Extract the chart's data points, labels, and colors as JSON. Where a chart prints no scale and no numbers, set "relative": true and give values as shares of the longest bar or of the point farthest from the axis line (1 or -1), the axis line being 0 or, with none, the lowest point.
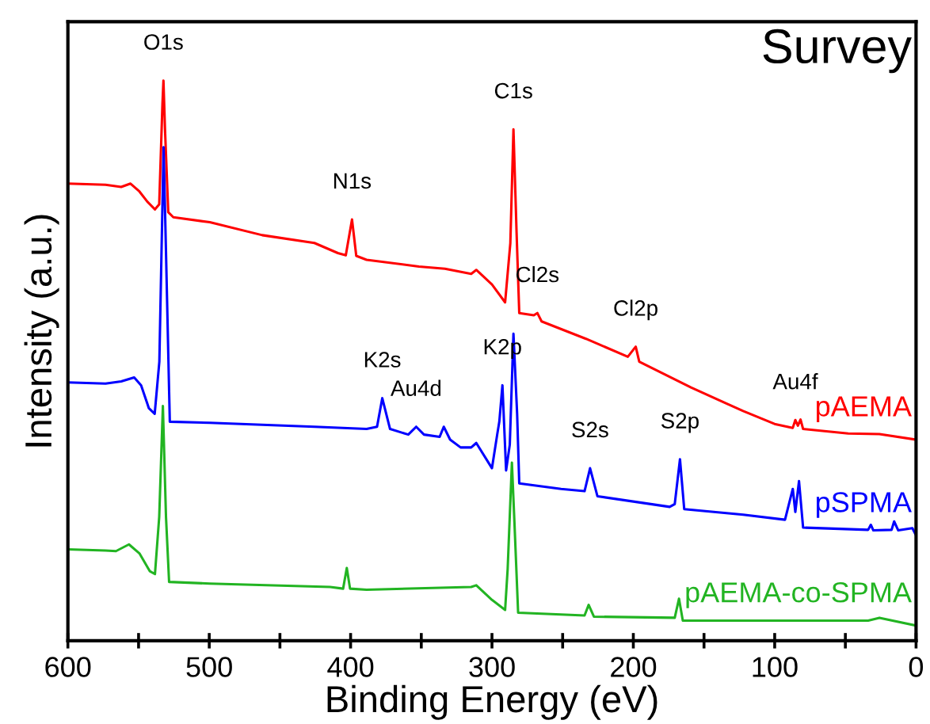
{
  "chart_data": {
    "type": "line",
    "title": "Survey",
    "xlabel": "Binding Energy (eV)",
    "ylabel": "Intensity (a.u.)",
    "relative": true,
    "xlim": [
      600,
      0
    ],
    "xticks": [
      600,
      {
        "value": 550,
        "label": null
      },
      500,
      {
        "value": 450,
        "label": null
      },
      400,
      {
        "value": 350,
        "label": null
      },
      300,
      {
        "value": 250,
        "label": null
      },
      200,
      {
        "value": 150,
        "label": null
      },
      100,
      {
        "value": 50,
        "label": null
      },
      0
    ],
    "tick_labels": "x",
    "grid": false,
    "legend": false,
    "marker": "none",
    "line_style": "solid",
    "series": [
      {
        "name": "pAEMA",
        "color": "#ff0000",
        "x": [
          600,
          573.4,
          562.3,
          555.7,
          549.4,
          543.9,
          538.4,
          535.4,
          533.1,
          532.4,
          531.3,
          529.0,
          525.4,
          499.6,
          462.5,
          425.6,
          409.0,
          403.4,
          399.0,
          396.0,
          388.7,
          351.7,
          333.3,
          314.7,
          311.1,
          300.0,
          290.7,
          287.0,
          284.8,
          282.6,
          280.7,
          270.4,
          267.9,
          264.9,
          233.5,
          203.9,
          198.3,
          195.8,
          159.2,
          122.3,
          100.1,
          87.2,
          85.4,
          83.6,
          81.7,
          79.9,
          48.0,
          25.9,
          0
        ],
        "values": [
          0.816,
          0.814,
          0.81,
          0.816,
          0.802,
          0.784,
          0.77,
          0.779,
          0.959,
          1.0,
          0.913,
          0.765,
          0.756,
          0.747,
          0.724,
          0.71,
          0.692,
          0.688,
          0.752,
          0.687,
          0.68,
          0.668,
          0.664,
          0.655,
          0.662,
          0.636,
          0.604,
          0.71,
          0.913,
          0.729,
          0.585,
          0.581,
          0.585,
          0.57,
          0.539,
          0.507,
          0.525,
          0.498,
          0.452,
          0.41,
          0.387,
          0.38,
          0.394,
          0.384,
          0.395,
          0.378,
          0.37,
          0.369,
          0.359
        ]
      },
      {
        "name": "pSPMA",
        "color": "#0000ff",
        "x": [
          600,
          573.4,
          562.3,
          553.1,
          548.2,
          542.7,
          538.6,
          535.3,
          532.3,
          530.5,
          527.9,
          499.6,
          425.6,
          388.7,
          381.3,
          377.6,
          372.1,
          359.2,
          353.6,
          348.1,
          337.0,
          334.1,
          329.6,
          322.2,
          314.7,
          311.1,
          300.0,
          296.3,
          294.8,
          292.6,
          290.0,
          287.4,
          284.8,
          282.2,
          280.7,
          251.1,
          234.5,
          230.6,
          225.4,
          174.3,
          170.7,
          167.0,
          164.0,
          122.3,
          92.7,
          87.2,
          85.4,
          82.8,
          79.9,
          33.9,
          32.0,
          30.2,
          17.3,
          15.5,
          12.6,
          2.6,
          0
        ],
        "values": [
          0.461,
          0.459,
          0.463,
          0.47,
          0.456,
          0.415,
          0.405,
          0.498,
          0.881,
          0.682,
          0.391,
          0.389,
          0.382,
          0.378,
          0.382,
          0.433,
          0.378,
          0.368,
          0.382,
          0.368,
          0.364,
          0.382,
          0.359,
          0.345,
          0.345,
          0.353,
          0.308,
          0.368,
          0.391,
          0.456,
          0.304,
          0.35,
          0.548,
          0.405,
          0.281,
          0.271,
          0.267,
          0.308,
          0.258,
          0.239,
          0.244,
          0.324,
          0.235,
          0.225,
          0.216,
          0.271,
          0.23,
          0.285,
          0.202,
          0.198,
          0.207,
          0.197,
          0.198,
          0.213,
          0.197,
          0.201,
          0.188
        ]
      },
      {
        "name": "pAEMA-co-SPMA",
        "color": "#22b422",
        "x": [
          600,
          573.4,
          566.0,
          556.8,
          549.4,
          542.0,
          538.4,
          535.4,
          532.8,
          530.6,
          528.4,
          499.6,
          414.5,
          405.3,
          402.7,
          400.4,
          388.7,
          314.7,
          311.1,
          300.0,
          290.7,
          288.9,
          285.9,
          284.1,
          281.5,
          234.5,
          231.6,
          227.9,
          170.7,
          167.7,
          165.0,
          104.6,
          33.9,
          25.9,
          0
        ],
        "values": [
          0.163,
          0.161,
          0.16,
          0.172,
          0.156,
          0.124,
          0.119,
          0.221,
          0.419,
          0.221,
          0.105,
          0.102,
          0.096,
          0.093,
          0.13,
          0.093,
          0.091,
          0.096,
          0.099,
          0.073,
          0.055,
          0.128,
          0.318,
          0.211,
          0.05,
          0.045,
          0.064,
          0.043,
          0.041,
          0.075,
          0.036,
          0.036,
          0.036,
          0.041,
          0.027
        ]
      }
    ],
    "annotations": [
      {
        "text": "O1s",
        "x": 532.4,
        "y": 1.0
      },
      {
        "text": "N1s",
        "x": 399.0,
        "y": 0.752
      },
      {
        "text": "C1s",
        "x": 284.8,
        "y": 0.913
      },
      {
        "text": "Cl2s",
        "x": 267.9,
        "y": 0.585
      },
      {
        "text": "Cl2p",
        "x": 198.3,
        "y": 0.525
      },
      {
        "text": "K2s",
        "x": 377.6,
        "y": 0.433
      },
      {
        "text": "Au4d",
        "x": 353.6,
        "y": 0.382
      },
      {
        "text": "K2p",
        "x": 292.6,
        "y": 0.456
      },
      {
        "text": "S2s",
        "x": 230.6,
        "y": 0.308
      },
      {
        "text": "S2p",
        "x": 167.0,
        "y": 0.324
      },
      {
        "text": "Au4f",
        "x": 85.4,
        "y": 0.394
      }
    ]
  }
}
